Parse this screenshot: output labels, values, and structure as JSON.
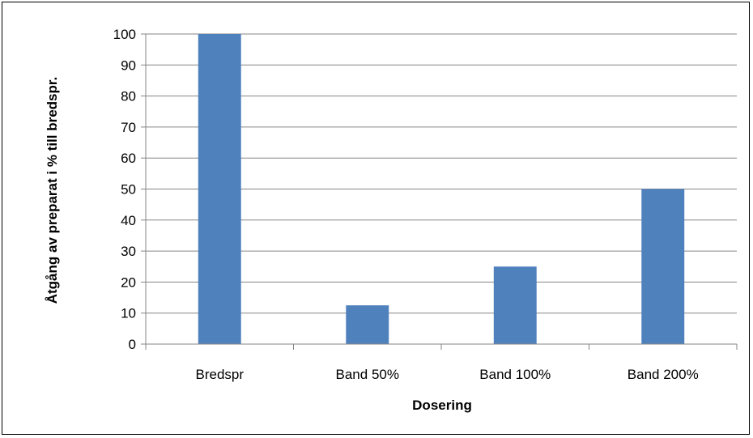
{
  "chart_data": {
    "type": "bar",
    "title": "",
    "xlabel": "Dosering",
    "ylabel": "Åtgång av preparat i % till bredspr.",
    "categories": [
      "Bredspr",
      "Band 50%",
      "Band 100%",
      "Band 200%"
    ],
    "values": [
      100,
      12.5,
      25,
      50
    ],
    "ylim": [
      0,
      100
    ],
    "yticks": [
      0,
      10,
      20,
      30,
      40,
      50,
      60,
      70,
      80,
      90,
      100
    ],
    "grid": true,
    "legend": "none",
    "bar_color": "#4F81BD",
    "grid_color": "#868686"
  }
}
